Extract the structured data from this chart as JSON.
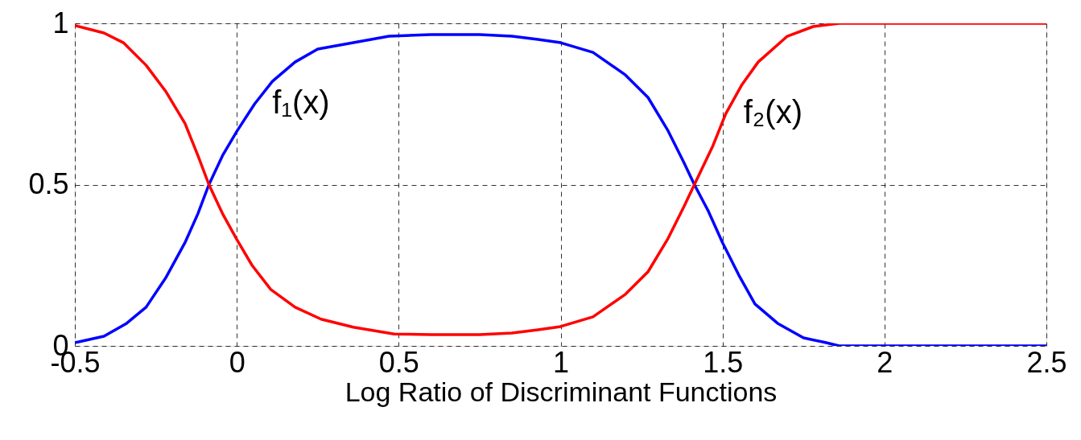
{
  "chart_data": {
    "type": "line",
    "xlabel": "Log Ratio of Discriminant Functions",
    "xlim": [
      -0.5,
      2.5
    ],
    "xticks": [
      -0.5,
      0,
      0.5,
      1,
      1.5,
      2,
      2.5
    ],
    "ylim": [
      0,
      1
    ],
    "yticks": [
      0,
      0.5,
      1
    ],
    "grid": true,
    "marker": "none",
    "line_style": "solid",
    "series": [
      {
        "name": "f₁(x)",
        "color": "#0000ff",
        "x": [
          -0.5,
          -0.41,
          -0.34,
          -0.28,
          -0.22,
          -0.16,
          -0.12,
          -0.086,
          -0.044,
          0,
          0.055,
          0.11,
          0.18,
          0.25,
          0.36,
          0.47,
          0.6,
          0.75,
          0.85,
          0.93,
          1.0,
          1.1,
          1.2,
          1.27,
          1.33,
          1.38,
          1.413,
          1.455,
          1.5,
          1.55,
          1.6,
          1.67,
          1.75,
          1.82,
          1.86,
          2.0,
          2.5
        ],
        "values": [
          0.01,
          0.03,
          0.07,
          0.12,
          0.21,
          0.32,
          0.41,
          0.5,
          0.59,
          0.665,
          0.75,
          0.82,
          0.88,
          0.92,
          0.94,
          0.96,
          0.965,
          0.965,
          0.96,
          0.95,
          0.94,
          0.91,
          0.84,
          0.77,
          0.67,
          0.57,
          0.5,
          0.42,
          0.32,
          0.22,
          0.13,
          0.07,
          0.025,
          0.01,
          0,
          0,
          0
        ]
      },
      {
        "name": "f₂(x)",
        "color": "#ff0000",
        "x": [
          -0.5,
          -0.41,
          -0.35,
          -0.28,
          -0.22,
          -0.16,
          -0.12,
          -0.086,
          -0.044,
          0,
          0.047,
          0.105,
          0.18,
          0.26,
          0.36,
          0.486,
          0.6,
          0.75,
          0.85,
          0.93,
          1.0,
          1.1,
          1.2,
          1.27,
          1.33,
          1.38,
          1.413,
          1.47,
          1.51,
          1.56,
          1.61,
          1.7,
          1.78,
          1.86,
          2.0,
          2.5
        ],
        "values": [
          0.993,
          0.97,
          0.94,
          0.87,
          0.79,
          0.69,
          0.59,
          0.5,
          0.41,
          0.33,
          0.25,
          0.175,
          0.12,
          0.083,
          0.058,
          0.037,
          0.035,
          0.035,
          0.04,
          0.05,
          0.06,
          0.09,
          0.16,
          0.23,
          0.33,
          0.43,
          0.5,
          0.62,
          0.72,
          0.81,
          0.88,
          0.96,
          0.99,
          1,
          1,
          1
        ]
      }
    ]
  }
}
